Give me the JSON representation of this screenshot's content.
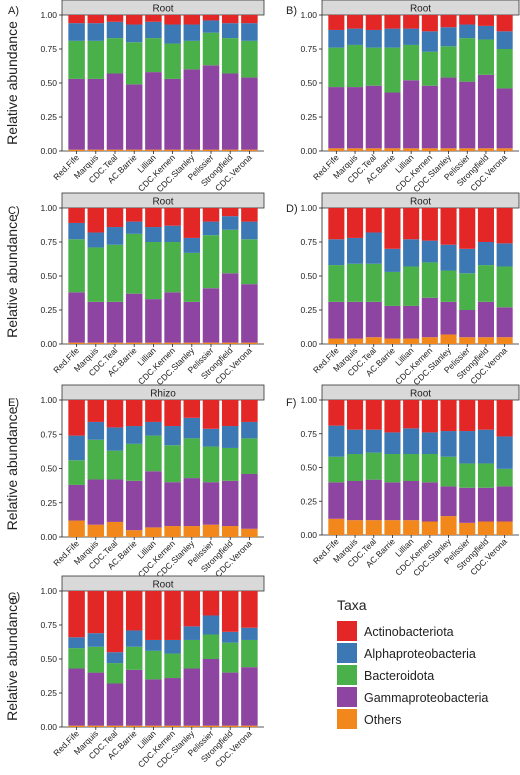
{
  "figure": {
    "ylabel": "Relative abundance",
    "yticks": [
      "0.00",
      "0.25",
      "0.50",
      "0.75",
      "1.00"
    ],
    "legend_title": "Taxa"
  },
  "taxa": [
    {
      "name": "Actinobacteriota",
      "color": "#e32726"
    },
    {
      "name": "Alphaproteobacteria",
      "color": "#3c78b4"
    },
    {
      "name": "Bacteroidota",
      "color": "#4ab04a"
    },
    {
      "name": "Gammaproteobacteria",
      "color": "#8e44a1"
    },
    {
      "name": "Others",
      "color": "#f2881c"
    }
  ],
  "chart_data": [
    {
      "type": "bar",
      "stacked": true,
      "panel": "A)",
      "strip": "Root",
      "ylim": [
        0,
        1
      ],
      "categories": [
        "Red.Fife",
        "Marquis",
        "CDC.Teal",
        "AC.Barrie",
        "Lillian",
        "CDC.Kernen",
        "CDC.Stanley",
        "Pelissier",
        "Strongfield",
        "CDC.Verona"
      ],
      "series": [
        {
          "name": "Others",
          "values": [
            0.01,
            0.01,
            0.01,
            0.01,
            0.01,
            0.01,
            0.01,
            0.01,
            0.01,
            0.01
          ]
        },
        {
          "name": "Gammaproteobacteria",
          "values": [
            0.52,
            0.52,
            0.56,
            0.48,
            0.57,
            0.52,
            0.59,
            0.62,
            0.56,
            0.53
          ]
        },
        {
          "name": "Bacteroidota",
          "values": [
            0.28,
            0.28,
            0.26,
            0.31,
            0.25,
            0.26,
            0.21,
            0.24,
            0.26,
            0.27
          ]
        },
        {
          "name": "Alphaproteobacteria",
          "values": [
            0.13,
            0.13,
            0.12,
            0.13,
            0.12,
            0.14,
            0.12,
            0.09,
            0.11,
            0.13
          ]
        },
        {
          "name": "Actinobacteriota",
          "values": [
            0.06,
            0.06,
            0.05,
            0.07,
            0.05,
            0.07,
            0.07,
            0.04,
            0.06,
            0.06
          ]
        }
      ]
    },
    {
      "type": "bar",
      "stacked": true,
      "panel": "B)",
      "strip": "Root",
      "ylim": [
        0,
        1
      ],
      "categories": [
        "Red.Fife",
        "Marquis",
        "CDC.Teal",
        "AC.Barrie",
        "Lillian",
        "CDC.Kernen",
        "CDC.Stanley",
        "Pelissier",
        "Strongfield",
        "CDC.Verona"
      ],
      "series": [
        {
          "name": "Others",
          "values": [
            0.02,
            0.02,
            0.02,
            0.02,
            0.02,
            0.02,
            0.02,
            0.02,
            0.02,
            0.02
          ]
        },
        {
          "name": "Gammaproteobacteria",
          "values": [
            0.45,
            0.45,
            0.46,
            0.41,
            0.5,
            0.46,
            0.52,
            0.49,
            0.54,
            0.44
          ]
        },
        {
          "name": "Bacteroidota",
          "values": [
            0.29,
            0.31,
            0.28,
            0.33,
            0.26,
            0.25,
            0.23,
            0.32,
            0.26,
            0.29
          ]
        },
        {
          "name": "Alphaproteobacteria",
          "values": [
            0.13,
            0.12,
            0.13,
            0.14,
            0.12,
            0.15,
            0.14,
            0.1,
            0.1,
            0.13
          ]
        },
        {
          "name": "Actinobacteriota",
          "values": [
            0.11,
            0.1,
            0.11,
            0.1,
            0.1,
            0.12,
            0.09,
            0.07,
            0.08,
            0.12
          ]
        }
      ]
    },
    {
      "type": "bar",
      "stacked": true,
      "panel": "C)",
      "strip": "Root",
      "ylim": [
        0,
        1
      ],
      "categories": [
        "Red.Fife",
        "Marquis",
        "CDC.Teal",
        "AC.Barrie",
        "Lillian",
        "CDC.Kernen",
        "CDC.Stanley",
        "Pelissier",
        "Strongfield",
        "CDC.Verona"
      ],
      "series": [
        {
          "name": "Others",
          "values": [
            0.01,
            0.01,
            0.01,
            0.01,
            0.01,
            0.01,
            0.01,
            0.01,
            0.01,
            0.01
          ]
        },
        {
          "name": "Gammaproteobacteria",
          "values": [
            0.37,
            0.3,
            0.3,
            0.36,
            0.32,
            0.37,
            0.3,
            0.4,
            0.51,
            0.43
          ]
        },
        {
          "name": "Bacteroidota",
          "values": [
            0.39,
            0.4,
            0.42,
            0.44,
            0.42,
            0.37,
            0.36,
            0.39,
            0.32,
            0.33
          ]
        },
        {
          "name": "Alphaproteobacteria",
          "values": [
            0.12,
            0.11,
            0.13,
            0.09,
            0.11,
            0.12,
            0.11,
            0.1,
            0.1,
            0.13
          ]
        },
        {
          "name": "Actinobacteriota",
          "values": [
            0.11,
            0.18,
            0.14,
            0.1,
            0.14,
            0.13,
            0.22,
            0.1,
            0.06,
            0.1
          ]
        }
      ]
    },
    {
      "type": "bar",
      "stacked": true,
      "panel": "D)",
      "strip": "Root",
      "ylim": [
        0,
        1
      ],
      "categories": [
        "Red.Fife",
        "Marquis",
        "CDC.Teal",
        "AC.Barrie",
        "Lillian",
        "CDC.Kernen",
        "CDC.Stanley",
        "Pelissier",
        "Strongfield",
        "CDC.Verona"
      ],
      "series": [
        {
          "name": "Others",
          "values": [
            0.04,
            0.04,
            0.05,
            0.04,
            0.04,
            0.05,
            0.07,
            0.05,
            0.05,
            0.05
          ]
        },
        {
          "name": "Gammaproteobacteria",
          "values": [
            0.27,
            0.27,
            0.26,
            0.24,
            0.24,
            0.29,
            0.24,
            0.2,
            0.26,
            0.22
          ]
        },
        {
          "name": "Bacteroidota",
          "values": [
            0.27,
            0.28,
            0.28,
            0.25,
            0.29,
            0.26,
            0.23,
            0.27,
            0.27,
            0.3
          ]
        },
        {
          "name": "Alphaproteobacteria",
          "values": [
            0.19,
            0.19,
            0.23,
            0.17,
            0.2,
            0.16,
            0.19,
            0.18,
            0.17,
            0.17
          ]
        },
        {
          "name": "Actinobacteriota",
          "values": [
            0.23,
            0.22,
            0.18,
            0.3,
            0.23,
            0.24,
            0.27,
            0.3,
            0.25,
            0.26
          ]
        }
      ]
    },
    {
      "type": "bar",
      "stacked": true,
      "panel": "E)",
      "strip": "Rhizo",
      "ylim": [
        0,
        1
      ],
      "categories": [
        "Red.Fife",
        "Marquis",
        "CDC.Teal",
        "AC.Barrie",
        "Lillian",
        "CDC.Kernen",
        "CDC.Stanley",
        "Pelissier",
        "Strongfield",
        "CDC.Verona"
      ],
      "series": [
        {
          "name": "Others",
          "values": [
            0.12,
            0.09,
            0.11,
            0.05,
            0.07,
            0.08,
            0.08,
            0.09,
            0.08,
            0.06
          ]
        },
        {
          "name": "Gammaproteobacteria",
          "values": [
            0.26,
            0.33,
            0.31,
            0.36,
            0.41,
            0.32,
            0.35,
            0.31,
            0.33,
            0.4
          ]
        },
        {
          "name": "Bacteroidota",
          "values": [
            0.18,
            0.29,
            0.21,
            0.27,
            0.26,
            0.27,
            0.29,
            0.26,
            0.24,
            0.26
          ]
        },
        {
          "name": "Alphaproteobacteria",
          "values": [
            0.18,
            0.13,
            0.17,
            0.13,
            0.1,
            0.14,
            0.15,
            0.13,
            0.16,
            0.12
          ]
        },
        {
          "name": "Actinobacteriota",
          "values": [
            0.26,
            0.16,
            0.2,
            0.19,
            0.16,
            0.19,
            0.13,
            0.21,
            0.19,
            0.16
          ]
        }
      ]
    },
    {
      "type": "bar",
      "stacked": true,
      "panel": "F)",
      "strip": "Root",
      "ylim": [
        0,
        1
      ],
      "categories": [
        "Red.Fife",
        "Marquis",
        "CDC.Teal",
        "AC.Barrie",
        "Lillian",
        "CDC.Kernen",
        "CDC.Stanley",
        "Pelissier",
        "Strongfield",
        "CDC.Verona"
      ],
      "series": [
        {
          "name": "Others",
          "values": [
            0.12,
            0.11,
            0.11,
            0.11,
            0.11,
            0.1,
            0.14,
            0.09,
            0.1,
            0.1
          ]
        },
        {
          "name": "Gammaproteobacteria",
          "values": [
            0.27,
            0.29,
            0.3,
            0.28,
            0.29,
            0.29,
            0.22,
            0.26,
            0.25,
            0.26
          ]
        },
        {
          "name": "Bacteroidota",
          "values": [
            0.19,
            0.2,
            0.2,
            0.21,
            0.2,
            0.21,
            0.22,
            0.18,
            0.18,
            0.13
          ]
        },
        {
          "name": "Alphaproteobacteria",
          "values": [
            0.23,
            0.18,
            0.17,
            0.16,
            0.19,
            0.16,
            0.19,
            0.24,
            0.25,
            0.24
          ]
        },
        {
          "name": "Actinobacteriota",
          "values": [
            0.19,
            0.22,
            0.22,
            0.24,
            0.21,
            0.24,
            0.23,
            0.23,
            0.22,
            0.27
          ]
        }
      ]
    },
    {
      "type": "bar",
      "stacked": true,
      "panel": "G)",
      "strip": "Root",
      "ylim": [
        0,
        1
      ],
      "categories": [
        "Red.Fife",
        "Marquis",
        "CDC.Teal",
        "AC.Barrie",
        "Lillian",
        "CDC.Kernen",
        "CDC.Stanley",
        "Pelissier",
        "Strongfield",
        "CDC.Verona"
      ],
      "series": [
        {
          "name": "Others",
          "values": [
            0.01,
            0.01,
            0.01,
            0.01,
            0.01,
            0.01,
            0.01,
            0.01,
            0.01,
            0.01
          ]
        },
        {
          "name": "Gammaproteobacteria",
          "values": [
            0.42,
            0.39,
            0.31,
            0.41,
            0.34,
            0.35,
            0.42,
            0.49,
            0.39,
            0.43
          ]
        },
        {
          "name": "Bacteroidota",
          "values": [
            0.15,
            0.19,
            0.15,
            0.17,
            0.21,
            0.18,
            0.21,
            0.18,
            0.22,
            0.2
          ]
        },
        {
          "name": "Alphaproteobacteria",
          "values": [
            0.08,
            0.1,
            0.08,
            0.12,
            0.08,
            0.1,
            0.1,
            0.14,
            0.08,
            0.09
          ]
        },
        {
          "name": "Actinobacteriota",
          "values": [
            0.34,
            0.31,
            0.45,
            0.29,
            0.36,
            0.36,
            0.26,
            0.18,
            0.3,
            0.27
          ]
        }
      ]
    }
  ]
}
